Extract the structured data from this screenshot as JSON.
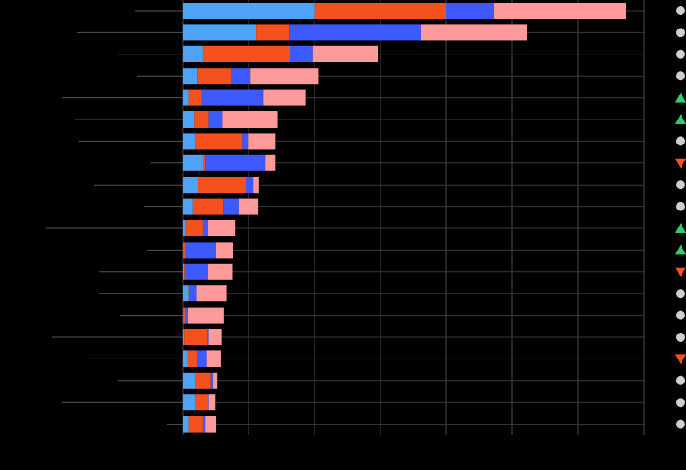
{
  "chart_data": {
    "type": "stacked-bar-horizontal",
    "categories": [
      null,
      null,
      null,
      null,
      null,
      null,
      null,
      null,
      null,
      null,
      null,
      null,
      null,
      null,
      null,
      null,
      null,
      null,
      null,
      null
    ],
    "series": [
      {
        "color": "#4fa3f7",
        "values": [
          20.1,
          11.1,
          3.1,
          2.2,
          0.9,
          1.8,
          1.9,
          3.1,
          2.3,
          1.6,
          0.5,
          0.1,
          0.3,
          0.9,
          0.1,
          0.3,
          0.8,
          1.9,
          1.9,
          0.9
        ]
      },
      {
        "color": "#f4511e",
        "values": [
          19.9,
          5.0,
          13.2,
          5.1,
          2.0,
          2.2,
          7.2,
          0.3,
          7.3,
          4.5,
          2.6,
          0.4,
          0.1,
          0.1,
          0.4,
          3.4,
          1.4,
          2.4,
          2.0,
          2.2
        ]
      },
      {
        "color": "#3d5afe",
        "values": [
          7.3,
          20.0,
          3.4,
          3.0,
          9.3,
          2.0,
          0.8,
          9.2,
          1.1,
          2.4,
          0.8,
          4.5,
          3.5,
          1.1,
          0.3,
          0.3,
          1.4,
          0.3,
          0.1,
          0.3
        ]
      },
      {
        "color": "#ff9a9a",
        "values": [
          20.0,
          16.2,
          9.9,
          10.3,
          6.4,
          8.4,
          4.2,
          1.5,
          0.9,
          3.0,
          4.1,
          2.7,
          3.6,
          4.6,
          5.4,
          1.9,
          2.2,
          0.7,
          0.9,
          1.6
        ]
      }
    ],
    "markers": [
      "circle",
      "circle",
      "circle",
      "circle",
      "up",
      "up",
      "circle",
      "down",
      "circle",
      "circle",
      "up",
      "up",
      "down",
      "circle",
      "circle",
      "circle",
      "down",
      "circle",
      "circle",
      "circle"
    ],
    "marker_colors": {
      "circle": "#cfcfcf",
      "up": "#2ecc71",
      "down": "#f4511e"
    },
    "xlim": [
      0,
      70
    ],
    "xticks": [
      0,
      10,
      20,
      30,
      40,
      50,
      60,
      70
    ],
    "grid": true
  }
}
